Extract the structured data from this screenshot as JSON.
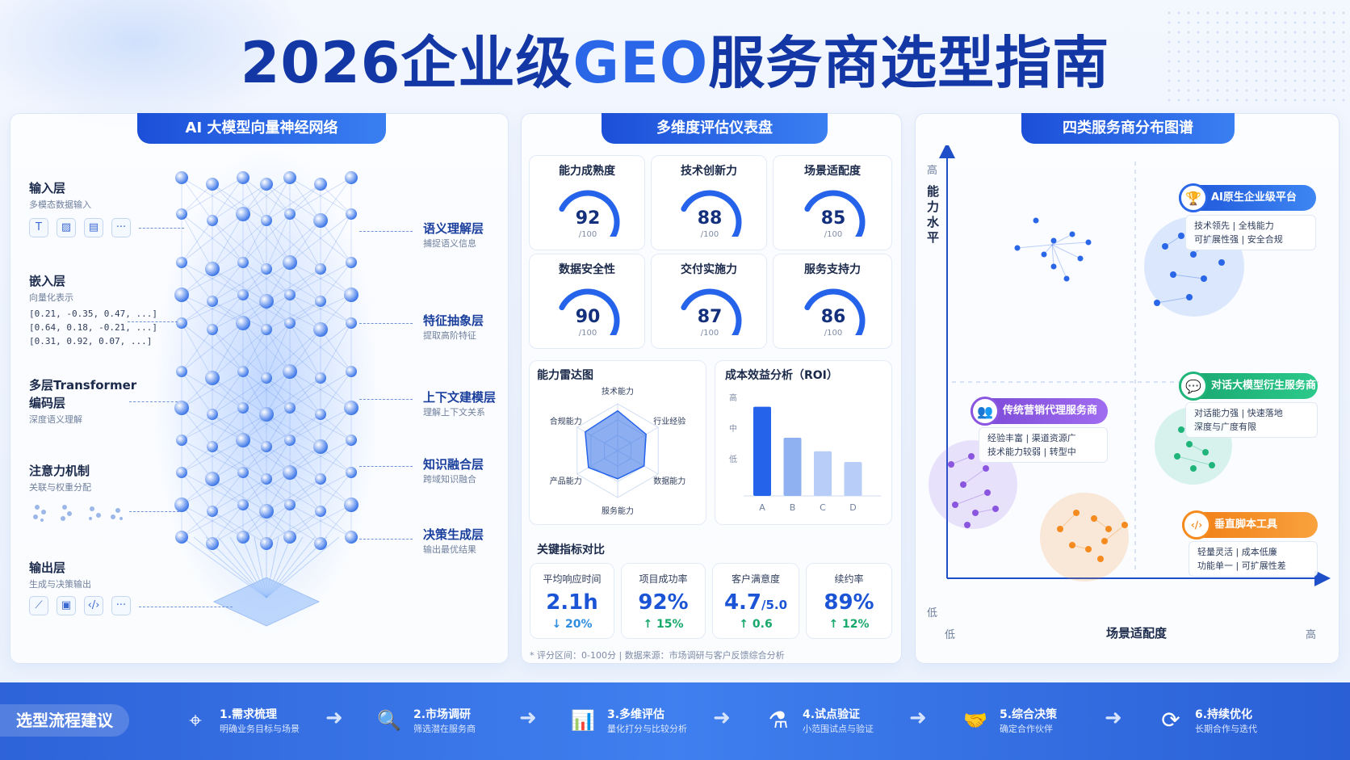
{
  "title_main": "2026企业级",
  "title_geo": "GEO",
  "title_tail": "服务商选型指南",
  "left_panel": {
    "title": "AI 大模型向量神经网络",
    "input": {
      "title": "输入层",
      "sub": "多模态数据输入",
      "icons": [
        "T",
        "▨",
        "▤",
        "···"
      ]
    },
    "embed": {
      "title": "嵌入层",
      "sub": "向量化表示",
      "vectors": [
        "[0.21, -0.35, 0.47, ...]",
        "[0.64, 0.18, -0.21, ...]",
        "[0.31, 0.92, 0.07, ...]"
      ]
    },
    "transformer": {
      "title1": "多层Transformer",
      "title2": "编码层",
      "sub": "深度语义理解"
    },
    "attention": {
      "title": "注意力机制",
      "sub": "关联与权重分配"
    },
    "output": {
      "title": "输出层",
      "sub": "生成与决策输出",
      "icons": [
        "⟋",
        "▣",
        "‹/›",
        "···"
      ]
    },
    "right_labels": [
      {
        "title": "语义理解层",
        "sub": "捕捉语义信息"
      },
      {
        "title": "特征抽象层",
        "sub": "提取高阶特征"
      },
      {
        "title": "上下文建模层",
        "sub": "理解上下文关系"
      },
      {
        "title": "知识融合层",
        "sub": "跨域知识融合"
      },
      {
        "title": "决策生成层",
        "sub": "输出最优结果"
      }
    ]
  },
  "mid_panel": {
    "title": "多维度评估仪表盘",
    "gauges": [
      {
        "label": "能力成熟度",
        "value": 92,
        "max_label": "/100"
      },
      {
        "label": "技术创新力",
        "value": 88,
        "max_label": "/100"
      },
      {
        "label": "场景适配度",
        "value": 85,
        "max_label": "/100"
      },
      {
        "label": "数据安全性",
        "value": 90,
        "max_label": "/100"
      },
      {
        "label": "交付实施力",
        "value": 87,
        "max_label": "/100"
      },
      {
        "label": "服务支持力",
        "value": 86,
        "max_label": "/100"
      }
    ],
    "radar": {
      "title": "能力雷达图",
      "axes": [
        "技术能力",
        "行业经验",
        "数据能力",
        "服务能力",
        "产品能力",
        "合规能力"
      ],
      "values": [
        0.85,
        0.7,
        0.65,
        0.6,
        0.72,
        0.8
      ]
    },
    "roi": {
      "title": "成本效益分析（ROI）",
      "y_ticks": [
        "高",
        "中",
        "低"
      ],
      "chart_data": {
        "type": "bar",
        "categories": [
          "A",
          "B",
          "C",
          "D"
        ],
        "values": [
          92,
          60,
          46,
          35
        ],
        "ylim": [
          0,
          100
        ]
      }
    },
    "kpi_title": "关键指标对比",
    "kpis": [
      {
        "label": "平均响应时间",
        "value": "2.1h",
        "unit": "",
        "delta": "↓ 20%"
      },
      {
        "label": "项目成功率",
        "value": "92%",
        "unit": "",
        "delta": "↑ 15%"
      },
      {
        "label": "客户满意度",
        "value": "4.7",
        "unit": "/5.0",
        "delta": "↑ 0.6"
      },
      {
        "label": "续约率",
        "value": "89%",
        "unit": "",
        "delta": "↑ 12%"
      }
    ],
    "note": "* 评分区间：0-100分 | 数据来源：市场调研与客户反馈综合分析"
  },
  "right_panel": {
    "title": "四类服务商分布图谱",
    "y_axis": {
      "label": "能力水平",
      "high": "高",
      "low": "低"
    },
    "x_axis": {
      "label": "场景适配度",
      "low": "低",
      "high": "高"
    },
    "categories": [
      {
        "name": "AI原生企业级平台",
        "lines": [
          "技术领先 | 全栈能力",
          "可扩展性强 | 安全合规"
        ],
        "color": "#2a66e8",
        "icon": "🏆"
      },
      {
        "name": "对话大模型衍生服务商",
        "lines": [
          "对话能力强 | 快速落地",
          "深度与广度有限"
        ],
        "color": "#1fb57a",
        "icon": "💬"
      },
      {
        "name": "传统营销代理服务商",
        "lines": [
          "经验丰富 | 渠道资源广",
          "技术能力较弱 | 转型中"
        ],
        "color": "#8a56e0",
        "icon": "👥"
      },
      {
        "name": "垂直脚本工具",
        "lines": [
          "轻量灵活 | 成本低廉",
          "功能单一 | 可扩展性差"
        ],
        "color": "#f58b1f",
        "icon": "‹/›"
      }
    ]
  },
  "flow": {
    "title": "选型流程建议",
    "steps": [
      {
        "title": "1.需求梳理",
        "sub": "明确业务目标与场景",
        "icon": "⌖"
      },
      {
        "title": "2.市场调研",
        "sub": "筛选潜在服务商",
        "icon": "🔍"
      },
      {
        "title": "3.多维评估",
        "sub": "量化打分与比较分析",
        "icon": "📊"
      },
      {
        "title": "4.试点验证",
        "sub": "小范围试点与验证",
        "icon": "⚗"
      },
      {
        "title": "5.综合决策",
        "sub": "确定合作伙伴",
        "icon": "🤝"
      },
      {
        "title": "6.持续优化",
        "sub": "长期合作与迭代",
        "icon": "⟳"
      }
    ]
  }
}
